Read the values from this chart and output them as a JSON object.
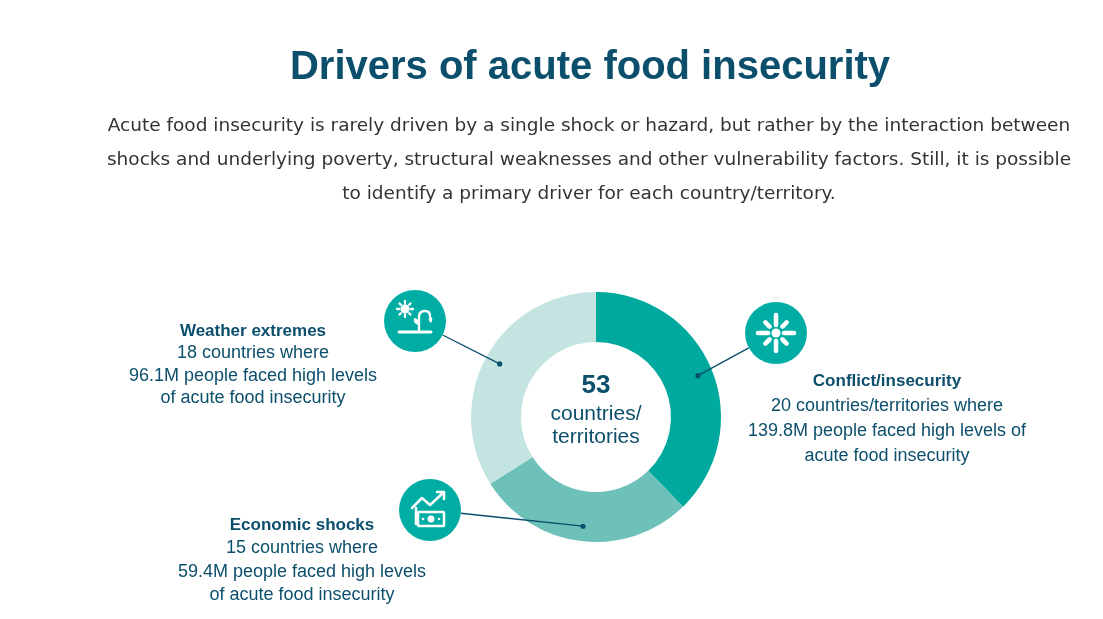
{
  "chart_data": {
    "type": "donut",
    "title": "Drivers of acute food insecurity",
    "subtitle": "Acute food insecurity is rarely driven by a single shock or hazard, but rather by the interaction between shocks and underlying poverty, structural weaknesses and other vulnerability factors. Still, it is possible to identify a primary driver for each country/territory.",
    "categories": [
      "Conflict/insecurity",
      "Economic shocks",
      "Weather extremes"
    ],
    "values": [
      20,
      15,
      18
    ],
    "colors": [
      "#00a99d",
      "#6dc1b9",
      "#c4e4e2"
    ],
    "value_labels": [
      "20 countries/territories where\n139.8M people faced high levels of\nacute food insecurity",
      "15 countries where\n59.4M people faced high levels\nof acute food insecurity",
      "18 countries where\n96.1M people faced high levels\nof acute food insecurity"
    ],
    "annotations": [
      "53\ncountries/\nterritories"
    ]
  }
}
